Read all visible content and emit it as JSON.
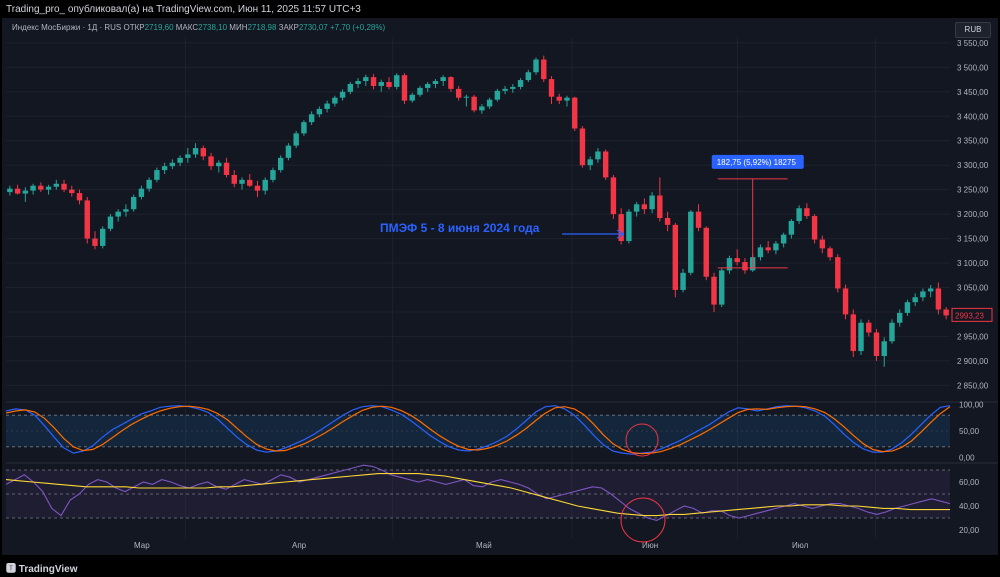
{
  "header": {
    "publisher": "Trading_pro_ опубликовал(а) на TradingView.com, Июн 11, 2025 11:57 UTC+3"
  },
  "legend": {
    "name": "Индекс МосБиржи · 1Д · RUS",
    "o_label": "ОТКР",
    "o": "2719,60",
    "h_label": "МАКС",
    "h": "2738,10",
    "l_label": "МИН",
    "l": "2718,98",
    "c_label": "ЗАКР",
    "c": "2730,07",
    "chg": "+7,70 (+0,28%)"
  },
  "currency": "RUB",
  "annotation": "ПМЭФ 5 - 8 июня 2024 года",
  "measure_label": "182,75 (5,92%) 18275",
  "last_price": "2993,23",
  "footer": {
    "brand": "TradingView"
  },
  "colors": {
    "up": "#26a69a",
    "down": "#f23645",
    "bg": "#131722",
    "measure": "#2962ff",
    "stoch_k": "#2962ff",
    "stoch_d": "#ff6d00",
    "rsi": "#7e57c2",
    "rsi_ma": "#fdd835",
    "circle": "#f23645"
  },
  "chart_data": [
    {
      "type": "candlestick",
      "x_ticks": [
        "Мар",
        "Апр",
        "Май",
        "Июн",
        "Июл"
      ],
      "y_ticks": [
        "3 550,00",
        "3 500,00",
        "3 450,00",
        "3 400,00",
        "3 350,00",
        "3 300,00",
        "3 250,00",
        "3 200,00",
        "3 150,00",
        "3 100,00",
        "3 050,00",
        "3 000,00",
        "2 950,00",
        "2 900,00",
        "2 850,00"
      ],
      "ylim": [
        2820,
        3560
      ],
      "ohlc": [
        [
          3245,
          3258,
          3238,
          3252
        ],
        [
          3252,
          3260,
          3240,
          3242
        ],
        [
          3242,
          3255,
          3225,
          3248
        ],
        [
          3248,
          3262,
          3240,
          3258
        ],
        [
          3258,
          3265,
          3245,
          3250
        ],
        [
          3250,
          3260,
          3240,
          3256
        ],
        [
          3256,
          3270,
          3250,
          3262
        ],
        [
          3262,
          3270,
          3245,
          3250
        ],
        [
          3250,
          3258,
          3236,
          3243
        ],
        [
          3243,
          3250,
          3220,
          3228
        ],
        [
          3228,
          3235,
          3140,
          3150
        ],
        [
          3150,
          3165,
          3128,
          3135
        ],
        [
          3135,
          3175,
          3130,
          3170
        ],
        [
          3170,
          3200,
          3165,
          3195
        ],
        [
          3195,
          3210,
          3185,
          3205
        ],
        [
          3205,
          3220,
          3195,
          3210
        ],
        [
          3210,
          3240,
          3205,
          3235
        ],
        [
          3235,
          3258,
          3230,
          3252
        ],
        [
          3252,
          3275,
          3246,
          3270
        ],
        [
          3270,
          3295,
          3265,
          3290
        ],
        [
          3290,
          3305,
          3282,
          3298
        ],
        [
          3298,
          3312,
          3292,
          3305
        ],
        [
          3305,
          3320,
          3298,
          3315
        ],
        [
          3315,
          3335,
          3305,
          3322
        ],
        [
          3322,
          3345,
          3315,
          3335
        ],
        [
          3335,
          3340,
          3310,
          3318
        ],
        [
          3318,
          3325,
          3290,
          3298
        ],
        [
          3298,
          3310,
          3285,
          3305
        ],
        [
          3305,
          3315,
          3275,
          3280
        ],
        [
          3280,
          3290,
          3255,
          3262
        ],
        [
          3262,
          3275,
          3250,
          3270
        ],
        [
          3270,
          3282,
          3255,
          3258
        ],
        [
          3258,
          3268,
          3235,
          3248
        ],
        [
          3248,
          3275,
          3240,
          3270
        ],
        [
          3270,
          3295,
          3265,
          3290
        ],
        [
          3290,
          3320,
          3285,
          3315
        ],
        [
          3315,
          3345,
          3310,
          3340
        ],
        [
          3340,
          3370,
          3335,
          3365
        ],
        [
          3365,
          3392,
          3360,
          3388
        ],
        [
          3388,
          3410,
          3382,
          3404
        ],
        [
          3404,
          3420,
          3398,
          3415
        ],
        [
          3415,
          3432,
          3408,
          3426
        ],
        [
          3426,
          3442,
          3420,
          3438
        ],
        [
          3438,
          3455,
          3432,
          3450
        ],
        [
          3450,
          3470,
          3445,
          3466
        ],
        [
          3466,
          3478,
          3458,
          3472
        ],
        [
          3472,
          3485,
          3462,
          3480
        ],
        [
          3480,
          3486,
          3455,
          3462
        ],
        [
          3462,
          3475,
          3450,
          3470
        ],
        [
          3470,
          3480,
          3455,
          3460
        ],
        [
          3460,
          3488,
          3455,
          3484
        ],
        [
          3484,
          3488,
          3425,
          3432
        ],
        [
          3432,
          3448,
          3428,
          3444
        ],
        [
          3444,
          3462,
          3440,
          3458
        ],
        [
          3458,
          3470,
          3450,
          3466
        ],
        [
          3466,
          3476,
          3458,
          3472
        ],
        [
          3472,
          3484,
          3462,
          3480
        ],
        [
          3480,
          3482,
          3450,
          3456
        ],
        [
          3456,
          3462,
          3432,
          3438
        ],
        [
          3438,
          3444,
          3420,
          3440
        ],
        [
          3440,
          3444,
          3408,
          3412
        ],
        [
          3412,
          3425,
          3405,
          3420
        ],
        [
          3420,
          3438,
          3415,
          3434
        ],
        [
          3434,
          3456,
          3430,
          3452
        ],
        [
          3452,
          3462,
          3445,
          3456
        ],
        [
          3456,
          3466,
          3448,
          3460
        ],
        [
          3460,
          3478,
          3455,
          3474
        ],
        [
          3474,
          3495,
          3470,
          3490
        ],
        [
          3490,
          3520,
          3485,
          3516
        ],
        [
          3516,
          3524,
          3470,
          3476
        ],
        [
          3476,
          3482,
          3425,
          3440
        ],
        [
          3440,
          3446,
          3425,
          3432
        ],
        [
          3432,
          3442,
          3420,
          3438
        ],
        [
          3438,
          3440,
          3370,
          3375
        ],
        [
          3375,
          3380,
          3295,
          3300
        ],
        [
          3300,
          3318,
          3290,
          3312
        ],
        [
          3312,
          3335,
          3305,
          3328
        ],
        [
          3328,
          3332,
          3270,
          3275
        ],
        [
          3275,
          3280,
          3190,
          3200
        ],
        [
          3200,
          3212,
          3138,
          3145
        ],
        [
          3145,
          3210,
          3140,
          3205
        ],
        [
          3205,
          3225,
          3195,
          3220
        ],
        [
          3220,
          3232,
          3200,
          3210
        ],
        [
          3210,
          3245,
          3202,
          3238
        ],
        [
          3238,
          3275,
          3185,
          3192
        ],
        [
          3192,
          3205,
          3165,
          3178
        ],
        [
          3178,
          3182,
          3030,
          3045
        ],
        [
          3045,
          3088,
          3040,
          3080
        ],
        [
          3080,
          3208,
          3075,
          3205
        ],
        [
          3205,
          3220,
          3165,
          3172
        ],
        [
          3172,
          3175,
          3065,
          3072
        ],
        [
          3072,
          3080,
          3000,
          3015
        ],
        [
          3015,
          3090,
          3010,
          3085
        ],
        [
          3085,
          3115,
          3078,
          3110
        ],
        [
          3110,
          3128,
          3095,
          3102
        ],
        [
          3102,
          3110,
          3078,
          3085
        ],
        [
          3085,
          3118,
          3082,
          3112
        ],
        [
          3112,
          3138,
          3105,
          3132
        ],
        [
          3132,
          3145,
          3120,
          3126
        ],
        [
          3126,
          3145,
          3118,
          3140
        ],
        [
          3140,
          3162,
          3132,
          3158
        ],
        [
          3158,
          3190,
          3150,
          3186
        ],
        [
          3186,
          3218,
          3180,
          3212
        ],
        [
          3212,
          3222,
          3190,
          3196
        ],
        [
          3196,
          3200,
          3140,
          3148
        ],
        [
          3148,
          3156,
          3120,
          3130
        ],
        [
          3130,
          3134,
          3105,
          3112
        ],
        [
          3112,
          3118,
          3040,
          3048
        ],
        [
          3048,
          3056,
          2985,
          2995
        ],
        [
          2995,
          3005,
          2908,
          2920
        ],
        [
          2920,
          2985,
          2912,
          2978
        ],
        [
          2978,
          2984,
          2950,
          2958
        ],
        [
          2958,
          2965,
          2900,
          2910
        ],
        [
          2910,
          2948,
          2888,
          2940
        ],
        [
          2940,
          2985,
          2935,
          2978
        ],
        [
          2978,
          3005,
          2970,
          2998
        ],
        [
          2998,
          3025,
          2992,
          3020
        ],
        [
          3020,
          3038,
          3012,
          3030
        ],
        [
          3030,
          3048,
          3022,
          3042
        ],
        [
          3042,
          3055,
          3030,
          3048
        ],
        [
          3048,
          3060,
          2995,
          3005
        ],
        [
          3005,
          3010,
          2985,
          2993
        ]
      ]
    },
    {
      "type": "line",
      "title": "",
      "y_ticks": [
        "100,00",
        "50,00",
        "0,00"
      ],
      "ylim": [
        -5,
        105
      ],
      "bands": [
        20,
        80
      ],
      "series": [
        {
          "values": [
            88,
            92,
            90,
            80,
            60,
            38,
            18,
            8,
            12,
            22,
            38,
            52,
            62,
            72,
            82,
            88,
            95,
            97,
            98,
            96,
            92,
            85,
            72,
            55,
            38,
            24,
            14,
            10,
            12,
            18,
            26,
            34,
            44,
            56,
            68,
            80,
            90,
            96,
            98,
            96,
            90,
            82,
            70,
            56,
            42,
            30,
            20,
            14,
            12,
            16,
            22,
            30,
            40,
            54,
            70,
            86,
            96,
            98,
            92,
            80,
            62,
            42,
            24,
            12,
            8,
            6,
            8,
            10,
            16,
            24,
            32,
            42,
            52,
            62,
            74,
            86,
            94,
            92,
            88,
            92,
            96,
            98,
            97,
            94,
            88,
            78,
            62,
            44,
            28,
            16,
            10,
            10,
            16,
            28,
            44,
            62,
            80,
            95,
            98
          ]
        },
        {
          "values": [
            84,
            88,
            90,
            86,
            74,
            56,
            36,
            20,
            13,
            15,
            24,
            37,
            50,
            62,
            72,
            81,
            88,
            93,
            96,
            97,
            95,
            91,
            83,
            71,
            55,
            39,
            25,
            16,
            12,
            13,
            19,
            26,
            35,
            45,
            56,
            68,
            79,
            89,
            95,
            97,
            95,
            89,
            80,
            68,
            54,
            41,
            30,
            21,
            15,
            14,
            17,
            23,
            31,
            42,
            55,
            70,
            84,
            94,
            96,
            92,
            81,
            63,
            43,
            26,
            15,
            9,
            7,
            8,
            11,
            17,
            24,
            33,
            42,
            52,
            63,
            74,
            85,
            91,
            92,
            91,
            94,
            96,
            97,
            96,
            92,
            85,
            73,
            58,
            41,
            26,
            15,
            11,
            12,
            19,
            31,
            48,
            66,
            83,
            96
          ]
        }
      ]
    },
    {
      "type": "line",
      "title": "",
      "y_ticks": [
        "60,00",
        "40,00",
        "20,00"
      ],
      "ylim": [
        15,
        75
      ],
      "bands": [
        30,
        50,
        70
      ],
      "series": [
        {
          "values": [
            58,
            62,
            66,
            60,
            52,
            38,
            32,
            45,
            50,
            58,
            62,
            60,
            55,
            52,
            56,
            60,
            58,
            62,
            60,
            57,
            55,
            58,
            60,
            56,
            54,
            58,
            62,
            60,
            58,
            62,
            66,
            64,
            60,
            62,
            64,
            66,
            68,
            70,
            72,
            74,
            73,
            70,
            66,
            64,
            62,
            60,
            62,
            60,
            58,
            60,
            62,
            57,
            56,
            60,
            62,
            60,
            58,
            55,
            50,
            46,
            48,
            50,
            52,
            54,
            56,
            55,
            50,
            44,
            38,
            34,
            30,
            28,
            32,
            36,
            40,
            38,
            34,
            36,
            36,
            32,
            30,
            32,
            34,
            36,
            38,
            40,
            42,
            40,
            38,
            40,
            42,
            42,
            40,
            38,
            35,
            33,
            35,
            38,
            40,
            42,
            44,
            46,
            44,
            42
          ]
        },
        {
          "values": [
            62,
            61,
            60,
            59,
            58,
            57,
            56,
            56,
            56,
            56,
            55,
            55,
            55,
            55,
            55,
            55,
            56,
            56,
            57,
            58,
            59,
            60,
            61,
            62,
            63,
            64,
            65,
            66,
            67,
            67,
            67,
            67,
            66,
            65,
            63,
            61,
            59,
            57,
            55,
            52,
            49,
            46,
            43,
            40,
            38,
            36,
            34,
            33,
            32,
            32,
            33,
            33,
            34,
            35,
            36,
            37,
            38,
            39,
            40,
            40,
            41,
            41,
            41,
            40,
            40,
            39,
            38,
            38,
            37,
            37,
            37,
            37
          ]
        }
      ]
    }
  ]
}
